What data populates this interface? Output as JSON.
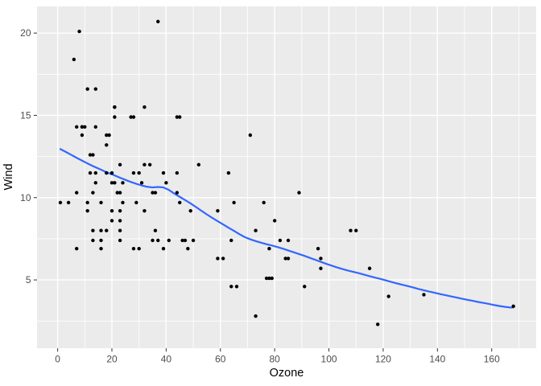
{
  "chart_data": {
    "type": "scatter",
    "title": "",
    "xlabel": "Ozone",
    "ylabel": "Wind",
    "x_ticks": [
      0,
      20,
      40,
      60,
      80,
      100,
      120,
      140,
      160
    ],
    "x_minor_ticks": [
      10,
      30,
      50,
      70,
      90,
      110,
      130,
      150,
      170
    ],
    "y_ticks": [
      5,
      10,
      15,
      20
    ],
    "y_minor_ticks": [
      2.5,
      7.5,
      12.5,
      17.5
    ],
    "xlim": [
      -7.6,
      176.4
    ],
    "ylim": [
      0.85,
      21.62
    ],
    "grid": "on",
    "legend_position": "none",
    "colors": {
      "panel_background": "#EBEBEB",
      "gridline": "#FFFFFF",
      "point": "#000000",
      "smooth_line": "#3366FF",
      "tick_mark": "#333333",
      "tick_label": "#4D4D4D",
      "axis_title": "#000000",
      "outer_background": "#FFFFFF"
    },
    "points": [
      [
        41,
        7.4
      ],
      [
        36,
        8.0
      ],
      [
        12,
        12.6
      ],
      [
        18,
        11.5
      ],
      [
        28,
        14.9
      ],
      [
        23,
        8.6
      ],
      [
        19,
        13.8
      ],
      [
        8,
        20.1
      ],
      [
        7,
        6.9
      ],
      [
        16,
        9.7
      ],
      [
        11,
        9.2
      ],
      [
        14,
        10.9
      ],
      [
        18,
        13.2
      ],
      [
        14,
        11.5
      ],
      [
        34,
        12.0
      ],
      [
        6,
        18.4
      ],
      [
        30,
        11.5
      ],
      [
        11,
        9.7
      ],
      [
        1,
        9.7
      ],
      [
        11,
        16.6
      ],
      [
        4,
        9.7
      ],
      [
        32,
        12.0
      ],
      [
        23,
        12.0
      ],
      [
        45,
        14.9
      ],
      [
        115,
        5.7
      ],
      [
        37,
        7.4
      ],
      [
        29,
        9.7
      ],
      [
        71,
        13.8
      ],
      [
        39,
        11.5
      ],
      [
        23,
        8.0
      ],
      [
        21,
        14.9
      ],
      [
        37,
        20.7
      ],
      [
        20,
        9.2
      ],
      [
        12,
        11.5
      ],
      [
        13,
        10.3
      ],
      [
        135,
        4.1
      ],
      [
        49,
        9.2
      ],
      [
        32,
        9.2
      ],
      [
        64,
        4.6
      ],
      [
        40,
        10.9
      ],
      [
        77,
        5.1
      ],
      [
        97,
        6.3
      ],
      [
        97,
        5.7
      ],
      [
        85,
        7.4
      ],
      [
        10,
        14.3
      ],
      [
        27,
        14.9
      ],
      [
        7,
        14.3
      ],
      [
        48,
        6.9
      ],
      [
        35,
        10.3
      ],
      [
        61,
        6.3
      ],
      [
        79,
        5.1
      ],
      [
        63,
        11.5
      ],
      [
        16,
        6.9
      ],
      [
        80,
        8.6
      ],
      [
        108,
        8.0
      ],
      [
        20,
        8.6
      ],
      [
        52,
        12.0
      ],
      [
        82,
        7.4
      ],
      [
        50,
        7.4
      ],
      [
        64,
        7.4
      ],
      [
        59,
        9.2
      ],
      [
        39,
        6.9
      ],
      [
        9,
        13.8
      ],
      [
        16,
        7.4
      ],
      [
        78,
        6.9
      ],
      [
        35,
        7.4
      ],
      [
        66,
        4.6
      ],
      [
        122,
        4.0
      ],
      [
        89,
        10.3
      ],
      [
        110,
        8.0
      ],
      [
        44,
        11.5
      ],
      [
        28,
        11.5
      ],
      [
        65,
        9.7
      ],
      [
        22,
        10.3
      ],
      [
        59,
        6.3
      ],
      [
        23,
        7.4
      ],
      [
        31,
        10.9
      ],
      [
        44,
        10.3
      ],
      [
        21,
        15.5
      ],
      [
        9,
        14.3
      ],
      [
        45,
        9.7
      ],
      [
        168,
        3.4
      ],
      [
        73,
        8.0
      ],
      [
        76,
        9.7
      ],
      [
        118,
        2.3
      ],
      [
        84,
        6.3
      ],
      [
        85,
        6.3
      ],
      [
        96,
        6.9
      ],
      [
        78,
        5.1
      ],
      [
        73,
        2.8
      ],
      [
        91,
        4.6
      ],
      [
        47,
        7.4
      ],
      [
        32,
        15.5
      ],
      [
        20,
        10.9
      ],
      [
        23,
        10.3
      ],
      [
        21,
        10.9
      ],
      [
        24,
        9.7
      ],
      [
        44,
        14.9
      ],
      [
        21,
        15.5
      ],
      [
        28,
        6.9
      ],
      [
        9,
        14.3
      ],
      [
        13,
        8.0
      ],
      [
        46,
        7.4
      ],
      [
        18,
        13.8
      ],
      [
        13,
        7.4
      ],
      [
        24,
        10.9
      ],
      [
        16,
        8.0
      ],
      [
        13,
        12.6
      ],
      [
        23,
        9.2
      ],
      [
        36,
        10.3
      ],
      [
        7,
        10.3
      ],
      [
        14,
        16.6
      ],
      [
        30,
        6.9
      ],
      [
        14,
        14.3
      ],
      [
        18,
        8.0
      ],
      [
        20,
        11.5
      ]
    ],
    "smooth_line": [
      [
        1,
        12.95
      ],
      [
        3,
        12.78
      ],
      [
        5,
        12.6
      ],
      [
        7,
        12.42
      ],
      [
        9,
        12.25
      ],
      [
        11,
        12.08
      ],
      [
        13,
        11.92
      ],
      [
        15,
        11.77
      ],
      [
        17,
        11.62
      ],
      [
        19,
        11.48
      ],
      [
        21,
        11.35
      ],
      [
        23,
        11.21
      ],
      [
        25,
        11.08
      ],
      [
        27,
        10.95
      ],
      [
        29,
        10.84
      ],
      [
        31,
        10.74
      ],
      [
        33,
        10.66
      ],
      [
        35,
        10.62
      ],
      [
        37,
        10.65
      ],
      [
        39,
        10.62
      ],
      [
        41,
        10.47
      ],
      [
        43,
        10.25
      ],
      [
        45,
        10.05
      ],
      [
        47,
        9.85
      ],
      [
        49,
        9.65
      ],
      [
        51,
        9.43
      ],
      [
        53,
        9.2
      ],
      [
        55,
        8.98
      ],
      [
        57,
        8.77
      ],
      [
        59,
        8.57
      ],
      [
        61,
        8.37
      ],
      [
        63,
        8.17
      ],
      [
        65,
        7.98
      ],
      [
        67,
        7.78
      ],
      [
        69,
        7.6
      ],
      [
        71,
        7.47
      ],
      [
        73,
        7.36
      ],
      [
        75,
        7.26
      ],
      [
        77,
        7.17
      ],
      [
        79,
        7.09
      ],
      [
        81,
        7.0
      ],
      [
        83,
        6.9
      ],
      [
        85,
        6.79
      ],
      [
        87,
        6.68
      ],
      [
        89,
        6.57
      ],
      [
        91,
        6.46
      ],
      [
        93,
        6.34
      ],
      [
        95,
        6.22
      ],
      [
        97,
        6.1
      ],
      [
        99,
        5.98
      ],
      [
        101,
        5.87
      ],
      [
        103,
        5.76
      ],
      [
        105,
        5.66
      ],
      [
        107,
        5.57
      ],
      [
        109,
        5.49
      ],
      [
        111,
        5.41
      ],
      [
        113,
        5.32
      ],
      [
        115,
        5.23
      ],
      [
        117,
        5.14
      ],
      [
        119,
        5.06
      ],
      [
        121,
        4.97
      ],
      [
        123,
        4.88
      ],
      [
        125,
        4.79
      ],
      [
        127,
        4.71
      ],
      [
        129,
        4.63
      ],
      [
        131,
        4.54
      ],
      [
        133,
        4.45
      ],
      [
        135,
        4.37
      ],
      [
        137,
        4.29
      ],
      [
        139,
        4.22
      ],
      [
        141,
        4.14
      ],
      [
        143,
        4.07
      ],
      [
        145,
        4.0
      ],
      [
        147,
        3.93
      ],
      [
        149,
        3.86
      ],
      [
        151,
        3.79
      ],
      [
        153,
        3.73
      ],
      [
        155,
        3.66
      ],
      [
        157,
        3.6
      ],
      [
        159,
        3.54
      ],
      [
        161,
        3.47
      ],
      [
        163,
        3.41
      ],
      [
        165,
        3.36
      ],
      [
        167,
        3.32
      ],
      [
        168,
        3.33
      ]
    ]
  }
}
